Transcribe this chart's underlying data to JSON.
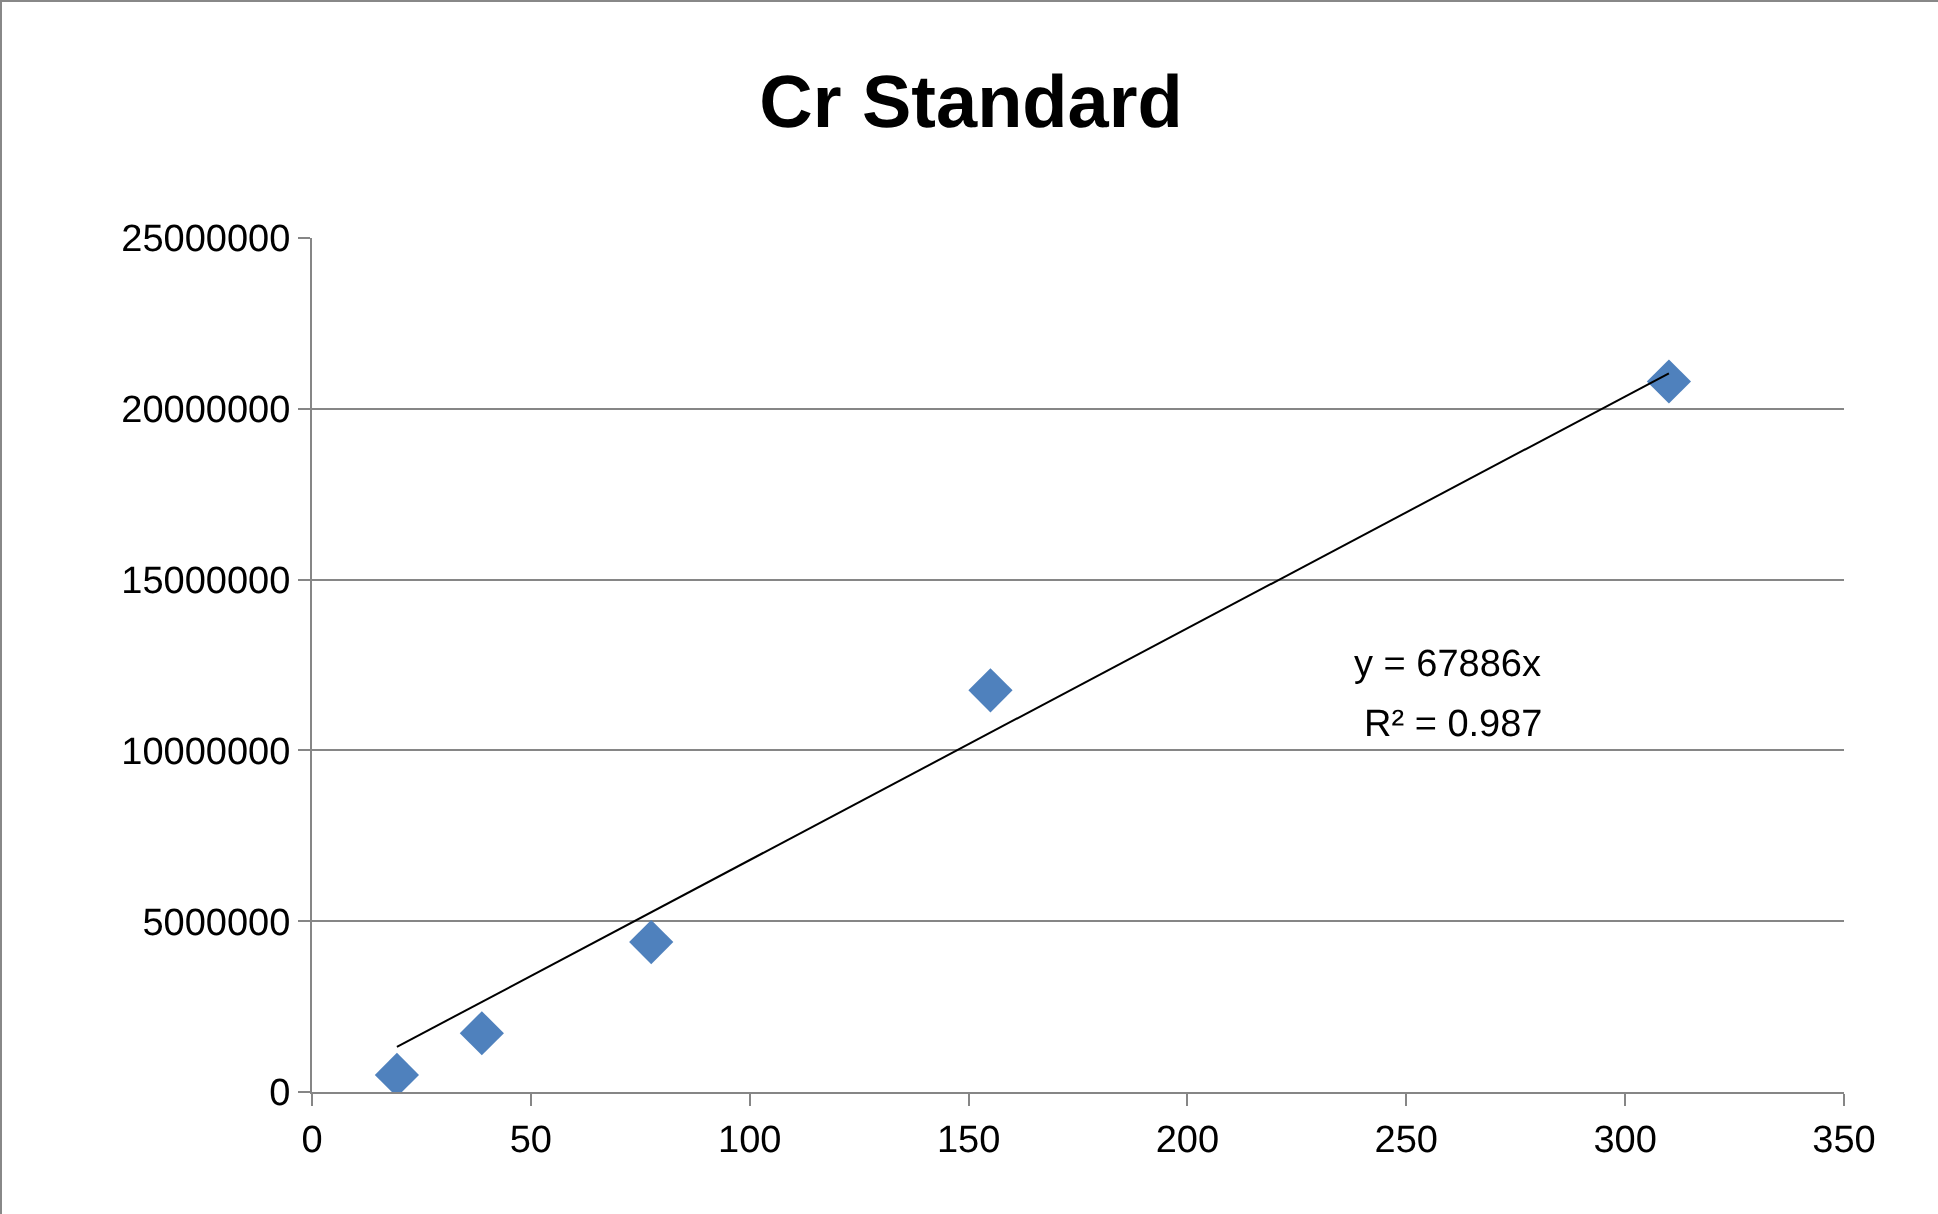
{
  "chart_data": {
    "type": "scatter",
    "title": "Cr Standard",
    "series": [
      {
        "color": "#4f81bd",
        "x": [
          19.4,
          38.8,
          77.5,
          155,
          310
        ],
        "values": [
          500000,
          1720000,
          4390000,
          11760000,
          20800000
        ]
      },
      {
        "type": "line",
        "marker": "none",
        "color": "#000000",
        "x": [
          19.4,
          310
        ],
        "values": [
          1320000,
          21040000
        ]
      }
    ],
    "xlim": [
      0,
      350
    ],
    "xticks": [
      0,
      50,
      100,
      150,
      200,
      250,
      300,
      350
    ],
    "ylim": [
      0,
      25000000
    ],
    "yticks": [
      0,
      5000000,
      10000000,
      15000000,
      20000000,
      25000000
    ],
    "grid": "y",
    "marker": "diamond",
    "annotations": [
      "y = 67886x",
      "R² = 0.987"
    ]
  }
}
